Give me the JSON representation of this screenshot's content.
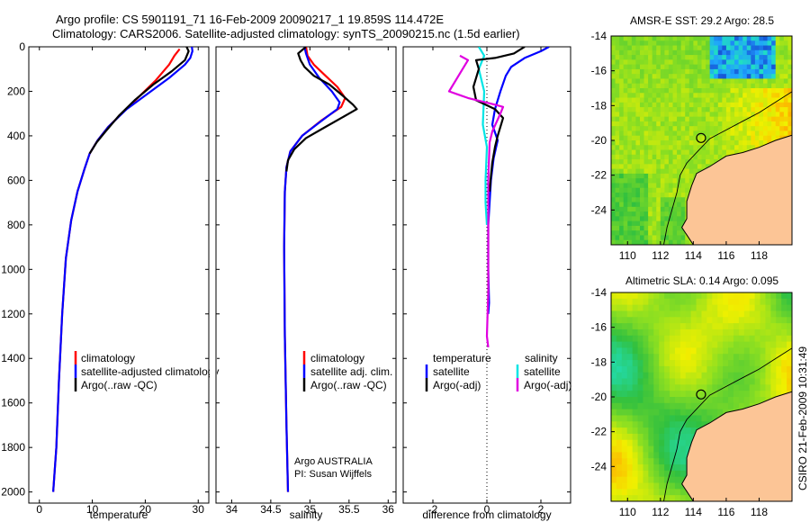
{
  "figure_title_line1": "Argo profile: CS 5901191_71 16-Feb-2009 20090217_1 19.859S 114.472E",
  "figure_title_line2": "Climatology: CARS2006. Satellite-adjusted climatology: synTS_20090215.nc (1.5d earlier)",
  "credit": "CSIRO 21-Feb-2009 10:31:49",
  "colors": {
    "red": "#ff0000",
    "blue": "#0000ff",
    "black": "#000000",
    "cyan": "#00e5e5",
    "magenta": "#e000e0",
    "land": "#fcc596"
  },
  "chart_data": [
    {
      "type": "line",
      "title": "",
      "xlabel": "temperature",
      "ylabel": "",
      "xlim": [
        -2,
        32
      ],
      "ylim": [
        2050,
        0
      ],
      "xticks": [
        0,
        10,
        20,
        30
      ],
      "yticks": [
        0,
        200,
        400,
        600,
        800,
        1000,
        1200,
        1400,
        1600,
        1800,
        2000
      ],
      "legend": [
        "climatology",
        "satellite-adjusted climatology",
        "Argo(..raw -QC)"
      ],
      "series": [
        {
          "name": "climatology",
          "color": "red",
          "points": [
            [
              26.5,
              10
            ],
            [
              25.5,
              40
            ],
            [
              24.5,
              80
            ],
            [
              22,
              150
            ],
            [
              19,
              220
            ],
            [
              16,
              290
            ],
            [
              13,
              360
            ],
            [
              11,
              420
            ],
            [
              9.5,
              480
            ],
            [
              8.5,
              550
            ],
            [
              7.2,
              650
            ],
            [
              6,
              780
            ],
            [
              5,
              950
            ],
            [
              4.3,
              1200
            ],
            [
              3.7,
              1500
            ],
            [
              3.2,
              1800
            ],
            [
              2.6,
              2000
            ]
          ]
        },
        {
          "name": "satellite-adjusted climatology",
          "color": "blue",
          "points": [
            [
              28.8,
              0
            ],
            [
              28.9,
              20
            ],
            [
              28.5,
              50
            ],
            [
              27.5,
              80
            ],
            [
              24.5,
              140
            ],
            [
              20.5,
              210
            ],
            [
              16.5,
              280
            ],
            [
              13,
              360
            ],
            [
              11,
              420
            ],
            [
              9.5,
              480
            ],
            [
              8.5,
              550
            ],
            [
              7.2,
              650
            ],
            [
              6,
              780
            ],
            [
              5,
              950
            ],
            [
              4.3,
              1200
            ],
            [
              3.7,
              1500
            ],
            [
              3.2,
              1800
            ],
            [
              2.6,
              2000
            ]
          ]
        },
        {
          "name": "Argo(..raw -QC)",
          "color": "black",
          "points": [
            [
              27.8,
              0
            ],
            [
              28.2,
              20
            ],
            [
              27.5,
              60
            ],
            [
              25,
              110
            ],
            [
              21.5,
              170
            ],
            [
              18,
              240
            ],
            [
              15,
              310
            ],
            [
              12.5,
              380
            ],
            [
              10.8,
              430
            ],
            [
              9.5,
              480
            ]
          ]
        }
      ]
    },
    {
      "type": "line",
      "title": "",
      "xlabel": "salinity",
      "ylabel": "",
      "xlim": [
        33.8,
        36.1
      ],
      "ylim": [
        2050,
        0
      ],
      "xticks": [
        34,
        34.5,
        35,
        35.5,
        36
      ],
      "legend": [
        "climatology",
        "satellite adj. clim.",
        "Argo(..raw -QC)"
      ],
      "annotations": [
        "Argo AUSTRALIA",
        "PI: Susan Wijffels"
      ],
      "series": [
        {
          "name": "climatology",
          "color": "red",
          "points": [
            [
              34.95,
              0
            ],
            [
              34.97,
              40
            ],
            [
              35.05,
              80
            ],
            [
              35.2,
              130
            ],
            [
              35.35,
              180
            ],
            [
              35.45,
              230
            ],
            [
              35.4,
              270
            ],
            [
              35.15,
              330
            ],
            [
              34.9,
              400
            ],
            [
              34.75,
              470
            ],
            [
              34.7,
              540
            ],
            [
              34.68,
              650
            ],
            [
              34.67,
              900
            ],
            [
              34.68,
              1300
            ],
            [
              34.7,
              1700
            ],
            [
              34.72,
              2000
            ]
          ]
        },
        {
          "name": "satellite adj. clim.",
          "color": "blue",
          "points": [
            [
              34.93,
              0
            ],
            [
              34.95,
              30
            ],
            [
              35.0,
              80
            ],
            [
              35.12,
              140
            ],
            [
              35.28,
              200
            ],
            [
              35.38,
              250
            ],
            [
              35.35,
              280
            ],
            [
              35.12,
              340
            ],
            [
              34.9,
              400
            ],
            [
              34.75,
              470
            ],
            [
              34.7,
              540
            ],
            [
              34.68,
              650
            ],
            [
              34.67,
              900
            ],
            [
              34.68,
              1300
            ],
            [
              34.7,
              1700
            ],
            [
              34.72,
              2000
            ]
          ]
        },
        {
          "name": "Argo(..raw -QC)",
          "color": "black",
          "points": [
            [
              34.95,
              0
            ],
            [
              34.85,
              30
            ],
            [
              34.88,
              60
            ],
            [
              34.93,
              90
            ],
            [
              35.05,
              130
            ],
            [
              35.25,
              170
            ],
            [
              35.42,
              220
            ],
            [
              35.55,
              260
            ],
            [
              35.6,
              280
            ],
            [
              35.5,
              300
            ],
            [
              35.2,
              360
            ],
            [
              34.95,
              410
            ],
            [
              34.8,
              460
            ],
            [
              34.72,
              510
            ],
            [
              34.7,
              560
            ]
          ]
        }
      ]
    },
    {
      "type": "line",
      "title": "",
      "xlabel": "difference from climatology",
      "ylabel": "",
      "xlim": [
        -3.1,
        3.1
      ],
      "ylim": [
        2050,
        0
      ],
      "xticks": [
        -2,
        0,
        2
      ],
      "legend": [
        "temperature",
        "salinity",
        "satellite",
        "satellite",
        "Argo(-adj)",
        "Argo(-adj)"
      ],
      "series": [
        {
          "name": "temperature satellite",
          "color": "blue",
          "points": [
            [
              2.3,
              0
            ],
            [
              2.0,
              20
            ],
            [
              1.4,
              50
            ],
            [
              0.9,
              90
            ],
            [
              0.7,
              130
            ],
            [
              0.5,
              200
            ],
            [
              0.3,
              280
            ],
            [
              0.2,
              350
            ],
            [
              0.4,
              420
            ],
            [
              0.25,
              500
            ],
            [
              0.15,
              600
            ],
            [
              0.05,
              800
            ],
            [
              0.05,
              1000
            ],
            [
              0.08,
              1150
            ],
            [
              0.05,
              1200
            ]
          ]
        },
        {
          "name": "salinity satellite",
          "color": "cyan",
          "points": [
            [
              -0.3,
              0
            ],
            [
              -0.1,
              40
            ],
            [
              -0.3,
              100
            ],
            [
              -0.1,
              200
            ],
            [
              -0.15,
              350
            ],
            [
              0,
              450
            ],
            [
              -0.05,
              600
            ],
            [
              -0.05,
              700
            ],
            [
              0.0,
              800
            ]
          ]
        },
        {
          "name": "temperature Argo(-adj)",
          "color": "black",
          "points": [
            [
              1.4,
              0
            ],
            [
              1.0,
              30
            ],
            [
              0.3,
              50
            ],
            [
              -0.4,
              60
            ],
            [
              -0.3,
              100
            ],
            [
              -0.5,
              180
            ],
            [
              -0.4,
              240
            ],
            [
              0.3,
              280
            ],
            [
              0.6,
              320
            ],
            [
              0.4,
              400
            ],
            [
              0.3,
              450
            ],
            [
              0.2,
              520
            ],
            [
              0.15,
              580
            ],
            [
              0.1,
              650
            ]
          ]
        },
        {
          "name": "salinity Argo(-adj)",
          "color": "magenta",
          "points": [
            [
              -1.0,
              40
            ],
            [
              -0.7,
              60
            ],
            [
              -0.9,
              100
            ],
            [
              -1.4,
              200
            ],
            [
              -0.7,
              230
            ],
            [
              0.3,
              260
            ],
            [
              0.6,
              270
            ],
            [
              0.5,
              300
            ],
            [
              0.2,
              380
            ],
            [
              0.1,
              430
            ],
            [
              0.05,
              600
            ],
            [
              0.05,
              900
            ],
            [
              0.05,
              1100
            ],
            [
              0.0,
              1300
            ],
            [
              0.05,
              1350
            ]
          ]
        }
      ]
    },
    {
      "type": "heatmap",
      "title": "AMSR-E SST: 29.2 Argo: 28.5",
      "xlim": [
        109,
        120
      ],
      "ylim": [
        -26,
        -14
      ],
      "xticks": [
        110,
        112,
        114,
        116,
        118
      ],
      "yticks": [
        -14,
        -16,
        -18,
        -20,
        -22,
        -24
      ],
      "argo_position": [
        114.47,
        -19.86
      ]
    },
    {
      "type": "heatmap",
      "title": "Altimetric SLA: 0.14 Argo: 0.095",
      "xlim": [
        109,
        120
      ],
      "ylim": [
        -26,
        -14
      ],
      "xticks": [
        110,
        112,
        114,
        116,
        118
      ],
      "yticks": [
        -14,
        -16,
        -18,
        -20,
        -22,
        -24
      ],
      "argo_position": [
        114.47,
        -19.86
      ]
    }
  ]
}
